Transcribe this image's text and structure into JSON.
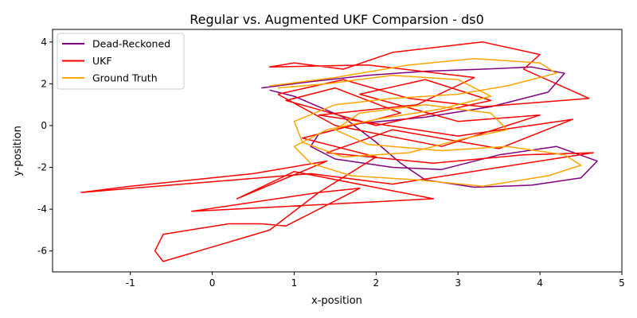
{
  "chart_data": {
    "type": "line",
    "title": "Regular vs. Augmented UKF Comparsion - ds0",
    "xlabel": "x-position",
    "ylabel": "y-position",
    "xlim": [
      -1.95,
      5.0
    ],
    "ylim": [
      -7.0,
      4.6
    ],
    "xticks": [
      "-1",
      "0",
      "1",
      "2",
      "3",
      "4",
      "5"
    ],
    "yticks": [
      "-6",
      "-4",
      "-2",
      "0",
      "2",
      "4"
    ],
    "xtick_values": [
      -1,
      0,
      1,
      2,
      3,
      4,
      5
    ],
    "ytick_values": [
      -6,
      -4,
      -2,
      0,
      2,
      4
    ],
    "grid": false,
    "legend_position": "top-left",
    "series": [
      {
        "name": "Dead-Reckoned",
        "color": "#800080",
        "points": [
          [
            0.6,
            1.8
          ],
          [
            1.2,
            2.1
          ],
          [
            1.9,
            2.4
          ],
          [
            2.6,
            2.6
          ],
          [
            3.3,
            2.7
          ],
          [
            3.9,
            2.8
          ],
          [
            4.3,
            2.5
          ],
          [
            4.1,
            1.6
          ],
          [
            3.4,
            0.9
          ],
          [
            2.6,
            0.4
          ],
          [
            1.8,
            0.1
          ],
          [
            1.3,
            -0.4
          ],
          [
            1.2,
            -1.0
          ],
          [
            1.5,
            -1.6
          ],
          [
            2.2,
            -2.0
          ],
          [
            2.8,
            -2.1
          ],
          [
            3.5,
            -1.4
          ],
          [
            4.2,
            -1.0
          ],
          [
            4.7,
            -1.7
          ],
          [
            4.5,
            -2.5
          ],
          [
            3.9,
            -2.85
          ],
          [
            3.2,
            -2.95
          ],
          [
            2.6,
            -2.6
          ],
          [
            2.3,
            -1.8
          ],
          [
            2.0,
            -0.8
          ],
          [
            1.6,
            0.4
          ],
          [
            1.0,
            1.4
          ],
          [
            0.7,
            1.7
          ]
        ]
      },
      {
        "name": "UKF",
        "color": "#ff0000",
        "points": [
          [
            0.8,
            1.5
          ],
          [
            1.6,
            2.2
          ],
          [
            2.4,
            1.3
          ],
          [
            3.3,
            0.9
          ],
          [
            4.6,
            1.3
          ],
          [
            3.8,
            2.7
          ],
          [
            4.0,
            3.4
          ],
          [
            3.3,
            4.0
          ],
          [
            2.2,
            3.5
          ],
          [
            1.6,
            2.7
          ],
          [
            1.0,
            3.0
          ],
          [
            0.7,
            2.8
          ],
          [
            1.9,
            2.9
          ],
          [
            3.2,
            2.3
          ],
          [
            2.5,
            1.0
          ],
          [
            1.3,
            0.5
          ],
          [
            3.0,
            -0.5
          ],
          [
            4.4,
            0.3
          ],
          [
            3.5,
            -1.1
          ],
          [
            2.2,
            -0.2
          ],
          [
            1.4,
            -1.3
          ],
          [
            2.7,
            -1.8
          ],
          [
            3.8,
            -1.4
          ],
          [
            4.65,
            -1.3
          ],
          [
            3.5,
            -2.0
          ],
          [
            2.2,
            -2.8
          ],
          [
            1.2,
            -2.3
          ],
          [
            -1.6,
            -3.2
          ],
          [
            -1.0,
            -2.9
          ],
          [
            0.5,
            -2.3
          ],
          [
            1.4,
            -1.7
          ],
          [
            0.3,
            -3.5
          ],
          [
            1.0,
            -2.2
          ],
          [
            2.7,
            -3.5
          ],
          [
            -0.25,
            -4.1
          ],
          [
            1.3,
            -3.2
          ],
          [
            1.8,
            -3.0
          ],
          [
            0.9,
            -4.8
          ],
          [
            0.6,
            -4.7
          ],
          [
            0.2,
            -4.7
          ],
          [
            -0.6,
            -5.2
          ],
          [
            -0.7,
            -6.0
          ],
          [
            -0.6,
            -6.5
          ],
          [
            0.7,
            -5.0
          ],
          [
            1.3,
            -3.2
          ],
          [
            2.0,
            -1.5
          ],
          [
            1.1,
            -0.6
          ],
          [
            2.3,
            0.6
          ],
          [
            1.5,
            1.8
          ],
          [
            0.9,
            1.2
          ],
          [
            2.0,
            0.0
          ],
          [
            3.4,
            1.2
          ],
          [
            2.6,
            2.2
          ],
          [
            1.8,
            1.5
          ],
          [
            3.0,
            0.2
          ],
          [
            4.0,
            0.5
          ],
          [
            2.8,
            -1.0
          ],
          [
            1.5,
            0.0
          ],
          [
            0.8,
            1.5
          ]
        ]
      },
      {
        "name": "Ground Truth",
        "color": "#ffa500",
        "points": [
          [
            0.7,
            1.9
          ],
          [
            1.5,
            2.3
          ],
          [
            2.4,
            2.9
          ],
          [
            3.2,
            3.2
          ],
          [
            4.0,
            3.0
          ],
          [
            4.2,
            2.5
          ],
          [
            3.6,
            1.9
          ],
          [
            3.0,
            1.5
          ],
          [
            2.2,
            1.3
          ],
          [
            1.5,
            1.0
          ],
          [
            1.0,
            0.2
          ],
          [
            1.1,
            -0.8
          ],
          [
            1.6,
            -1.5
          ],
          [
            2.4,
            -1.3
          ],
          [
            3.1,
            -0.6
          ],
          [
            3.6,
            -0.2
          ],
          [
            3.4,
            0.6
          ],
          [
            2.6,
            1.0
          ],
          [
            1.8,
            0.6
          ],
          [
            1.5,
            -0.2
          ],
          [
            1.9,
            -0.9
          ],
          [
            2.8,
            -1.2
          ],
          [
            3.6,
            -1.0
          ],
          [
            4.3,
            -1.4
          ],
          [
            4.5,
            -1.9
          ],
          [
            4.1,
            -2.4
          ],
          [
            3.3,
            -2.9
          ],
          [
            2.5,
            -2.6
          ],
          [
            1.7,
            -2.4
          ],
          [
            1.2,
            -1.8
          ],
          [
            1.0,
            -1.0
          ],
          [
            1.4,
            -0.2
          ],
          [
            2.0,
            0.3
          ],
          [
            2.8,
            0.8
          ],
          [
            3.4,
            1.4
          ],
          [
            3.0,
            2.2
          ],
          [
            2.2,
            2.4
          ],
          [
            1.4,
            2.0
          ],
          [
            0.8,
            1.8
          ]
        ]
      }
    ]
  }
}
